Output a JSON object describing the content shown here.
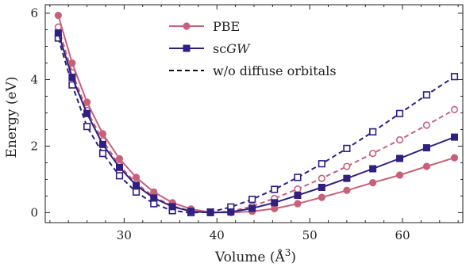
{
  "chart_data": {
    "type": "line",
    "title": "",
    "xlabel": "Volume (Å",
    "xlabel_superscript": "3",
    "xlabel_close": ")",
    "ylabel": "Energy (eV)",
    "xlim": [
      21.5,
      66.5
    ],
    "ylim": [
      -0.3,
      6.25
    ],
    "xticks": [
      30,
      40,
      50,
      60
    ],
    "yticks": [
      0,
      2,
      4,
      6
    ],
    "grid": false,
    "legend_position": "top-center",
    "legend": [
      {
        "label": "PBE",
        "italic": false,
        "marker": "circle",
        "color": "#c9607a",
        "dash": false
      },
      {
        "label_prefix": "sc",
        "label_italic": "GW",
        "marker": "square",
        "color": "#2e1f80",
        "dash": false
      },
      {
        "label": "w/o diffuse orbitals",
        "marker": "none",
        "color": "#111111",
        "dash": true
      }
    ],
    "x": [
      22.9,
      24.4,
      26.0,
      27.7,
      29.5,
      31.3,
      33.2,
      35.2,
      37.2,
      39.3,
      41.5,
      43.8,
      46.2,
      48.7,
      51.3,
      54.0,
      56.8,
      59.7,
      62.6,
      65.6
    ],
    "series": [
      {
        "name": "PBE",
        "color": "#c9607a",
        "marker": "circle",
        "filled": true,
        "dashed": false,
        "values": [
          5.93,
          4.5,
          3.32,
          2.37,
          1.62,
          1.06,
          0.62,
          0.3,
          0.11,
          0.01,
          0.0,
          0.04,
          0.12,
          0.27,
          0.46,
          0.67,
          0.9,
          1.13,
          1.39,
          1.65
        ]
      },
      {
        "name": "scGW",
        "color": "#2e1f80",
        "marker": "square",
        "filled": true,
        "dashed": false,
        "values": [
          5.4,
          4.07,
          2.98,
          2.05,
          1.36,
          0.82,
          0.44,
          0.18,
          0.04,
          0.0,
          0.02,
          0.13,
          0.3,
          0.52,
          0.76,
          1.03,
          1.32,
          1.63,
          1.95,
          2.27
        ]
      },
      {
        "name": "PBE w/o diffuse orbitals",
        "color": "#c9607a",
        "marker": "circle",
        "filled": false,
        "dashed": true,
        "values": [
          5.58,
          4.21,
          3.07,
          2.16,
          1.42,
          0.88,
          0.48,
          0.2,
          0.05,
          0.0,
          0.04,
          0.19,
          0.43,
          0.71,
          1.03,
          1.39,
          1.78,
          2.19,
          2.63,
          3.1
        ]
      },
      {
        "name": "scGW w/o diffuse orbitals",
        "color": "#2e1f80",
        "marker": "square",
        "filled": false,
        "dashed": true,
        "values": [
          5.25,
          3.84,
          2.59,
          1.78,
          1.11,
          0.62,
          0.27,
          0.06,
          0.0,
          0.02,
          0.17,
          0.4,
          0.7,
          1.06,
          1.47,
          1.93,
          2.43,
          2.98,
          3.54,
          4.09
        ]
      }
    ]
  }
}
